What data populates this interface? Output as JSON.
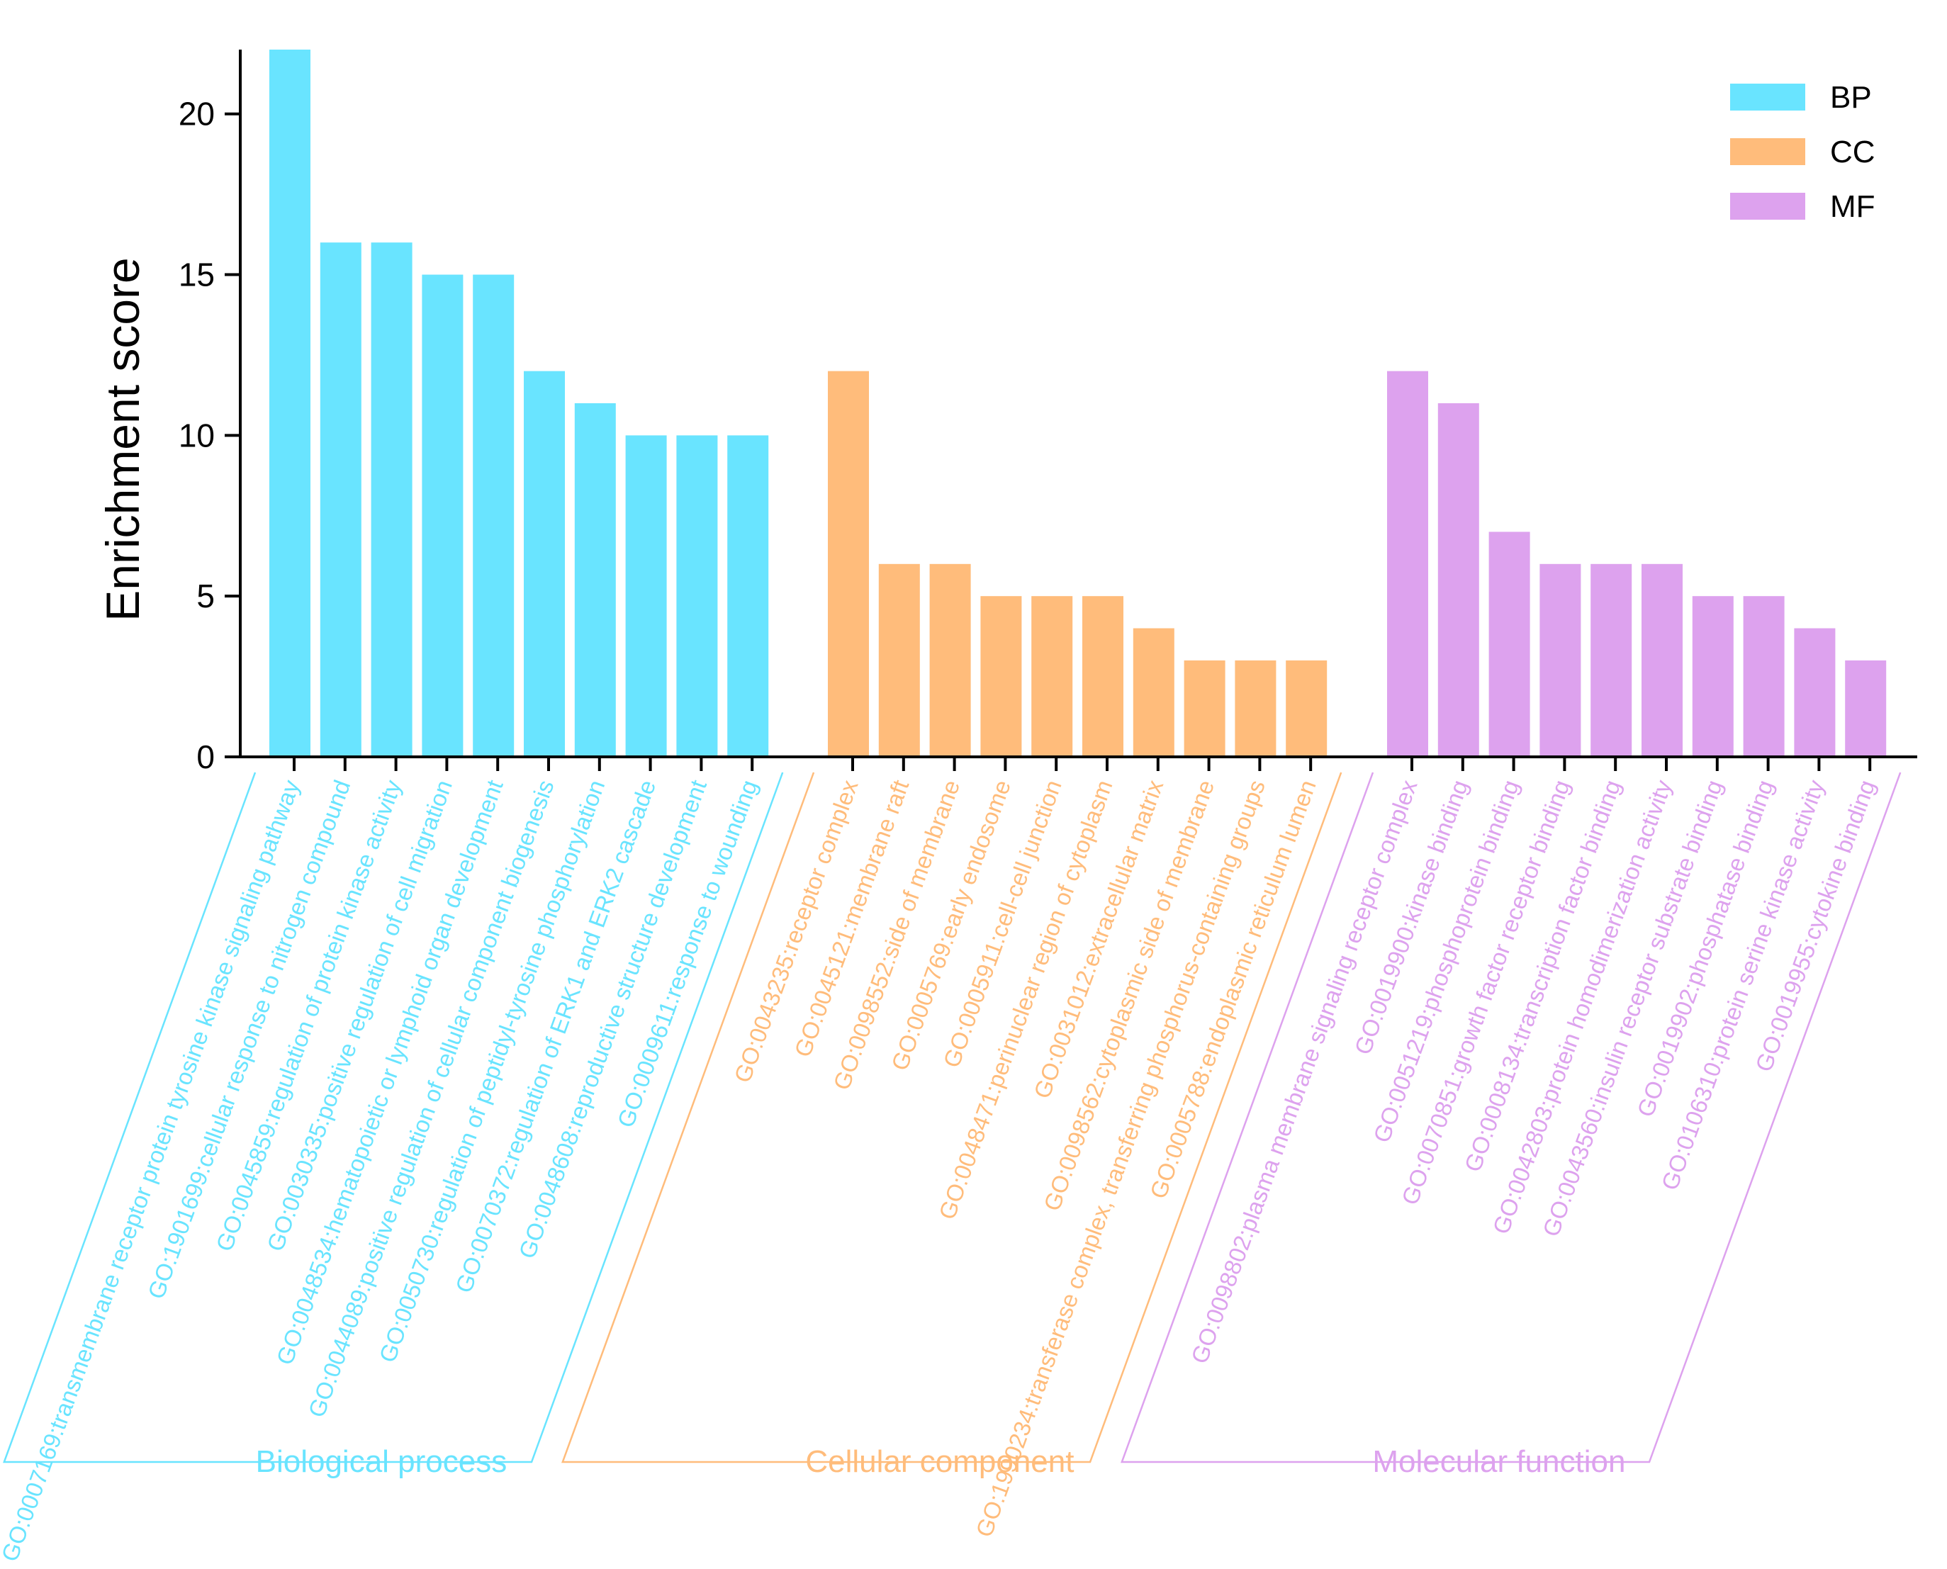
{
  "chart_data": {
    "type": "bar",
    "title": "",
    "xlabel": "",
    "ylabel": "Enrichment score",
    "ylim": [
      0,
      22
    ],
    "yticks": [
      0,
      5,
      10,
      15,
      20
    ],
    "grid": false,
    "legend_position": "top-right",
    "series": [
      {
        "key": "BP",
        "legend": "BP",
        "group_label": "Biological process",
        "color": "#69E4FF",
        "categories": [
          "GO:0007169:transmembrane receptor protein tyrosine kinase signaling pathway",
          "GO:1901699:cellular response to nitrogen compound",
          "GO:0045859:regulation of protein kinase activity",
          "GO:0030335:positive regulation of cell migration",
          "GO:0048534:hematopoietic or lymphoid organ development",
          "GO:0044089:positive regulation of cellular component biogenesis",
          "GO:0050730:regulation of peptidyl-tyrosine phosphorylation",
          "GO:0070372:regulation of ERK1 and ERK2 cascade",
          "GO:0048608:reproductive structure development",
          "GO:0009611:response to wounding"
        ],
        "values": [
          22,
          16,
          16,
          15,
          15,
          12,
          11,
          10,
          10,
          10
        ]
      },
      {
        "key": "CC",
        "legend": "CC",
        "group_label": "Cellular component",
        "color": "#FFBC7B",
        "categories": [
          "GO:0043235:receptor complex",
          "GO:0045121:membrane raft",
          "GO:0098552:side of membrane",
          "GO:0005769:early endosome",
          "GO:0005911:cell-cell junction",
          "GO:0048471:perinuclear region of cytoplasm",
          "GO:0031012:extracellular matrix",
          "GO:0098562:cytoplasmic side of membrane",
          "GO:1990234:transferase complex, transferring phosphorus-containing groups",
          "GO:0005788:endoplasmic reticulum lumen"
        ],
        "values": [
          12,
          6,
          6,
          5,
          5,
          5,
          4,
          3,
          3,
          3
        ]
      },
      {
        "key": "MF",
        "legend": "MF",
        "group_label": "Molecular function",
        "color": "#DDA2EE",
        "categories": [
          "GO:0098802:plasma membrane signaling receptor complex",
          "GO:0019900:kinase binding",
          "GO:0051219:phosphoprotein binding",
          "GO:0070851:growth factor receptor binding",
          "GO:0008134:transcription factor binding",
          "GO:0042803:protein homodimerization activity",
          "GO:0043560:insulin receptor substrate binding",
          "GO:0019902:phosphatase binding",
          "GO:0106310:protein serine kinase activity",
          "GO:0019955:cytokine binding"
        ],
        "values": [
          12,
          11,
          7,
          6,
          6,
          6,
          5,
          5,
          4,
          3
        ]
      }
    ]
  }
}
